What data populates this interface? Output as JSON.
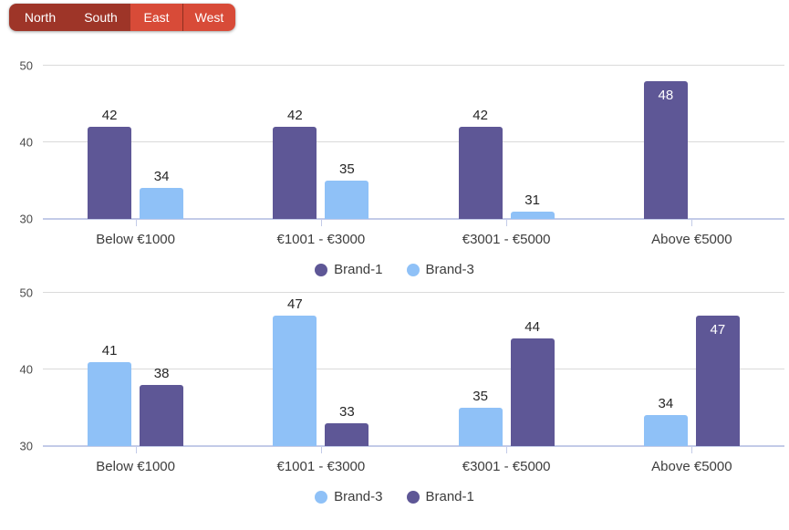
{
  "tab_bar": {
    "items": [
      {
        "label": "North",
        "variant": "dark"
      },
      {
        "label": "South",
        "variant": "dark"
      },
      {
        "label": "East",
        "variant": "light"
      },
      {
        "label": "West",
        "variant": "light"
      }
    ]
  },
  "colors": {
    "brand1_purple": "#5e5796",
    "brand3_blue": "#8fc1f7",
    "tab_dark_red": "#9e3528",
    "tab_bright_red": "#d84b38",
    "tab_divider": "#8f2f20",
    "gridline": "#dadada",
    "baseline": "#c3cbe8",
    "bar_label": "#262626",
    "bar_label_inside": "#ffffff",
    "axis_text": "#4a4a4a",
    "category_text": "#3d3d3d",
    "legend_text": "#3c3c3c"
  },
  "chart_data": [
    {
      "type": "bar",
      "categories": [
        "Below €1000",
        "€1001 - €3000",
        "€3001 - €5000",
        "Above €5000"
      ],
      "series": [
        {
          "name": "Brand-1",
          "color": "#5e5796",
          "values": [
            42,
            42,
            42,
            48
          ],
          "label_inside": [
            false,
            false,
            false,
            true
          ]
        },
        {
          "name": "Brand-3",
          "color": "#8fc1f7",
          "values": [
            34,
            35,
            31,
            null
          ],
          "label_inside": [
            false,
            false,
            false,
            false
          ]
        }
      ],
      "ylim": [
        30,
        50
      ],
      "yticks": [
        30,
        40,
        50
      ],
      "grid": true,
      "legend_position": "bottom"
    },
    {
      "type": "bar",
      "categories": [
        "Below €1000",
        "€1001 - €3000",
        "€3001 - €5000",
        "Above €5000"
      ],
      "series": [
        {
          "name": "Brand-3",
          "color": "#8fc1f7",
          "values": [
            41,
            47,
            35,
            34
          ],
          "label_inside": [
            false,
            false,
            false,
            false
          ]
        },
        {
          "name": "Brand-1",
          "color": "#5e5796",
          "values": [
            38,
            33,
            44,
            47
          ],
          "label_inside": [
            false,
            false,
            false,
            true
          ]
        }
      ],
      "ylim": [
        30,
        50
      ],
      "yticks": [
        30,
        40,
        50
      ],
      "grid": true,
      "legend_position": "bottom"
    }
  ]
}
